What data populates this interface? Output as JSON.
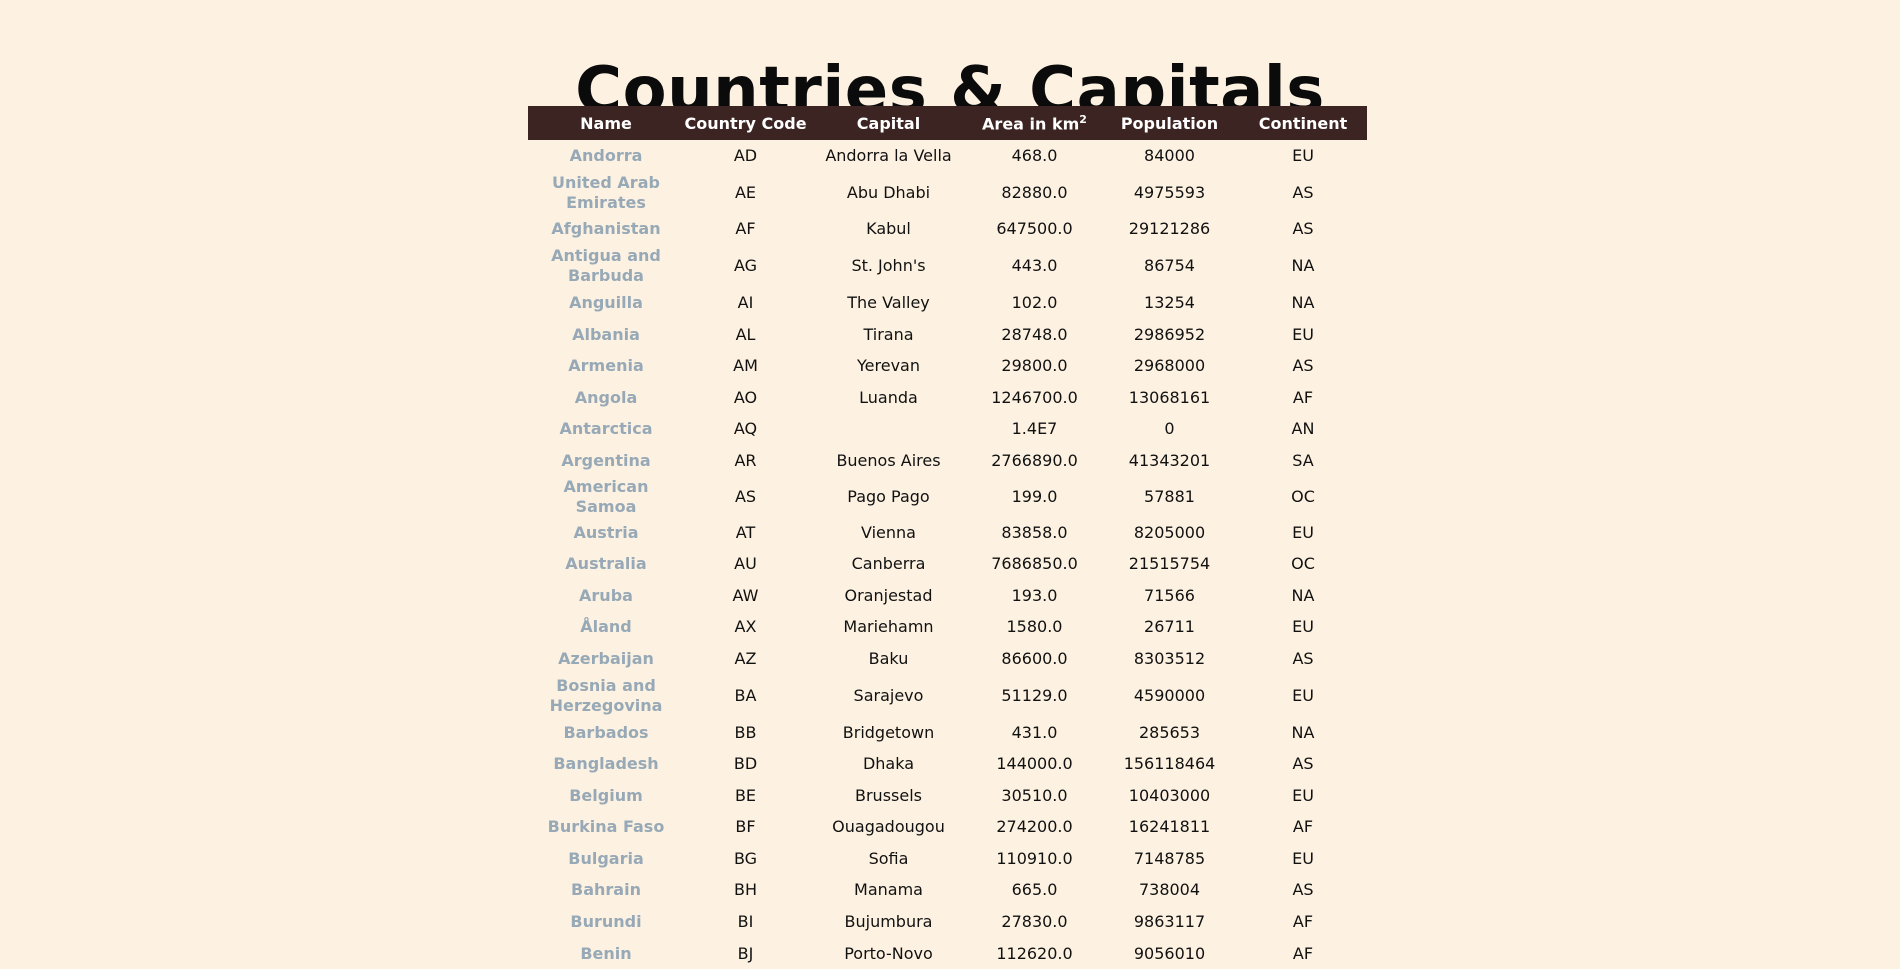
{
  "title": "Countries & Capitals",
  "headers": {
    "name": "Name",
    "code": "Country Code",
    "capital": "Capital",
    "area": "Area in km",
    "area_sup": "2",
    "population": "Population",
    "continent": "Continent"
  },
  "colors": {
    "background": "#fdf2e2",
    "header_bg": "#3b2421",
    "header_text": "#ffffff",
    "name_link": "#97a9b6",
    "cell_text": "#111111"
  },
  "rows": [
    {
      "name": "Andorra",
      "code": "AD",
      "capital": "Andorra la Vella",
      "area": "468.0",
      "population": "84000",
      "continent": "EU"
    },
    {
      "name": "United Arab Emirates",
      "code": "AE",
      "capital": "Abu Dhabi",
      "area": "82880.0",
      "population": "4975593",
      "continent": "AS"
    },
    {
      "name": "Afghanistan",
      "code": "AF",
      "capital": "Kabul",
      "area": "647500.0",
      "population": "29121286",
      "continent": "AS"
    },
    {
      "name": "Antigua and Barbuda",
      "code": "AG",
      "capital": "St. John's",
      "area": "443.0",
      "population": "86754",
      "continent": "NA"
    },
    {
      "name": "Anguilla",
      "code": "AI",
      "capital": "The Valley",
      "area": "102.0",
      "population": "13254",
      "continent": "NA"
    },
    {
      "name": "Albania",
      "code": "AL",
      "capital": "Tirana",
      "area": "28748.0",
      "population": "2986952",
      "continent": "EU"
    },
    {
      "name": "Armenia",
      "code": "AM",
      "capital": "Yerevan",
      "area": "29800.0",
      "population": "2968000",
      "continent": "AS"
    },
    {
      "name": "Angola",
      "code": "AO",
      "capital": "Luanda",
      "area": "1246700.0",
      "population": "13068161",
      "continent": "AF"
    },
    {
      "name": "Antarctica",
      "code": "AQ",
      "capital": "",
      "area": "1.4E7",
      "population": "0",
      "continent": "AN"
    },
    {
      "name": "Argentina",
      "code": "AR",
      "capital": "Buenos Aires",
      "area": "2766890.0",
      "population": "41343201",
      "continent": "SA"
    },
    {
      "name": "American Samoa",
      "code": "AS",
      "capital": "Pago Pago",
      "area": "199.0",
      "population": "57881",
      "continent": "OC"
    },
    {
      "name": "Austria",
      "code": "AT",
      "capital": "Vienna",
      "area": "83858.0",
      "population": "8205000",
      "continent": "EU"
    },
    {
      "name": "Australia",
      "code": "AU",
      "capital": "Canberra",
      "area": "7686850.0",
      "population": "21515754",
      "continent": "OC"
    },
    {
      "name": "Aruba",
      "code": "AW",
      "capital": "Oranjestad",
      "area": "193.0",
      "population": "71566",
      "continent": "NA"
    },
    {
      "name": "Åland",
      "code": "AX",
      "capital": "Mariehamn",
      "area": "1580.0",
      "population": "26711",
      "continent": "EU"
    },
    {
      "name": "Azerbaijan",
      "code": "AZ",
      "capital": "Baku",
      "area": "86600.0",
      "population": "8303512",
      "continent": "AS"
    },
    {
      "name": "Bosnia and Herzegovina",
      "code": "BA",
      "capital": "Sarajevo",
      "area": "51129.0",
      "population": "4590000",
      "continent": "EU"
    },
    {
      "name": "Barbados",
      "code": "BB",
      "capital": "Bridgetown",
      "area": "431.0",
      "population": "285653",
      "continent": "NA"
    },
    {
      "name": "Bangladesh",
      "code": "BD",
      "capital": "Dhaka",
      "area": "144000.0",
      "population": "156118464",
      "continent": "AS"
    },
    {
      "name": "Belgium",
      "code": "BE",
      "capital": "Brussels",
      "area": "30510.0",
      "population": "10403000",
      "continent": "EU"
    },
    {
      "name": "Burkina Faso",
      "code": "BF",
      "capital": "Ouagadougou",
      "area": "274200.0",
      "population": "16241811",
      "continent": "AF"
    },
    {
      "name": "Bulgaria",
      "code": "BG",
      "capital": "Sofia",
      "area": "110910.0",
      "population": "7148785",
      "continent": "EU"
    },
    {
      "name": "Bahrain",
      "code": "BH",
      "capital": "Manama",
      "area": "665.0",
      "population": "738004",
      "continent": "AS"
    },
    {
      "name": "Burundi",
      "code": "BI",
      "capital": "Bujumbura",
      "area": "27830.0",
      "population": "9863117",
      "continent": "AF"
    },
    {
      "name": "Benin",
      "code": "BJ",
      "capital": "Porto-Novo",
      "area": "112620.0",
      "population": "9056010",
      "continent": "AF"
    }
  ]
}
